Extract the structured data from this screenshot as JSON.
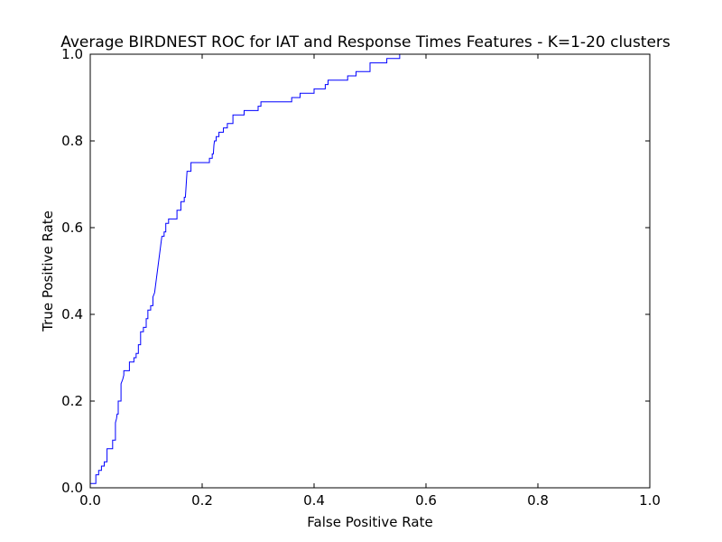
{
  "chart_data": {
    "type": "line",
    "title": "Average BIRDNEST ROC for IAT and Response Times Features - K=1-20 clusters",
    "xlabel": "False Positive Rate",
    "ylabel": "True Positive Rate",
    "xlim": [
      0,
      1
    ],
    "ylim": [
      0,
      1
    ],
    "grid": false,
    "legend": "none",
    "x_ticks": [
      "0.0",
      "0.2",
      "0.4",
      "0.6",
      "0.8",
      "1.0"
    ],
    "y_ticks": [
      "0.0",
      "0.2",
      "0.4",
      "0.6",
      "0.8",
      "1.0"
    ],
    "series": [
      {
        "color": "#0000ff",
        "points": [
          [
            0.0,
            0.0
          ],
          [
            0.0,
            0.01
          ],
          [
            0.01,
            0.01
          ],
          [
            0.01,
            0.03
          ],
          [
            0.015,
            0.03
          ],
          [
            0.015,
            0.04
          ],
          [
            0.02,
            0.04
          ],
          [
            0.02,
            0.05
          ],
          [
            0.025,
            0.05
          ],
          [
            0.025,
            0.06
          ],
          [
            0.03,
            0.06
          ],
          [
            0.03,
            0.09
          ],
          [
            0.04,
            0.09
          ],
          [
            0.04,
            0.11
          ],
          [
            0.045,
            0.11
          ],
          [
            0.045,
            0.15
          ],
          [
            0.047,
            0.16
          ],
          [
            0.048,
            0.17
          ],
          [
            0.05,
            0.17
          ],
          [
            0.05,
            0.2
          ],
          [
            0.055,
            0.2
          ],
          [
            0.055,
            0.24
          ],
          [
            0.058,
            0.25
          ],
          [
            0.06,
            0.26
          ],
          [
            0.06,
            0.27
          ],
          [
            0.07,
            0.27
          ],
          [
            0.07,
            0.29
          ],
          [
            0.078,
            0.29
          ],
          [
            0.078,
            0.3
          ],
          [
            0.082,
            0.3
          ],
          [
            0.082,
            0.31
          ],
          [
            0.086,
            0.31
          ],
          [
            0.086,
            0.33
          ],
          [
            0.09,
            0.33
          ],
          [
            0.09,
            0.36
          ],
          [
            0.095,
            0.36
          ],
          [
            0.095,
            0.37
          ],
          [
            0.1,
            0.37
          ],
          [
            0.1,
            0.39
          ],
          [
            0.103,
            0.39
          ],
          [
            0.103,
            0.41
          ],
          [
            0.108,
            0.41
          ],
          [
            0.108,
            0.42
          ],
          [
            0.112,
            0.42
          ],
          [
            0.112,
            0.44
          ],
          [
            0.115,
            0.45
          ],
          [
            0.117,
            0.47
          ],
          [
            0.118,
            0.48
          ],
          [
            0.12,
            0.5
          ],
          [
            0.122,
            0.52
          ],
          [
            0.124,
            0.54
          ],
          [
            0.126,
            0.56
          ],
          [
            0.127,
            0.57
          ],
          [
            0.128,
            0.58
          ],
          [
            0.132,
            0.58
          ],
          [
            0.132,
            0.59
          ],
          [
            0.135,
            0.59
          ],
          [
            0.135,
            0.61
          ],
          [
            0.14,
            0.61
          ],
          [
            0.14,
            0.62
          ],
          [
            0.155,
            0.62
          ],
          [
            0.155,
            0.64
          ],
          [
            0.162,
            0.64
          ],
          [
            0.162,
            0.66
          ],
          [
            0.168,
            0.66
          ],
          [
            0.168,
            0.67
          ],
          [
            0.17,
            0.67
          ],
          [
            0.171,
            0.69
          ],
          [
            0.172,
            0.71
          ],
          [
            0.173,
            0.73
          ],
          [
            0.18,
            0.73
          ],
          [
            0.18,
            0.75
          ],
          [
            0.213,
            0.75
          ],
          [
            0.213,
            0.76
          ],
          [
            0.218,
            0.76
          ],
          [
            0.218,
            0.77
          ],
          [
            0.22,
            0.77
          ],
          [
            0.221,
            0.79
          ],
          [
            0.222,
            0.8
          ],
          [
            0.225,
            0.8
          ],
          [
            0.225,
            0.81
          ],
          [
            0.23,
            0.81
          ],
          [
            0.23,
            0.82
          ],
          [
            0.238,
            0.82
          ],
          [
            0.238,
            0.83
          ],
          [
            0.245,
            0.83
          ],
          [
            0.245,
            0.84
          ],
          [
            0.255,
            0.84
          ],
          [
            0.255,
            0.86
          ],
          [
            0.275,
            0.86
          ],
          [
            0.275,
            0.87
          ],
          [
            0.3,
            0.87
          ],
          [
            0.3,
            0.88
          ],
          [
            0.305,
            0.88
          ],
          [
            0.305,
            0.89
          ],
          [
            0.36,
            0.89
          ],
          [
            0.36,
            0.9
          ],
          [
            0.375,
            0.9
          ],
          [
            0.375,
            0.91
          ],
          [
            0.4,
            0.91
          ],
          [
            0.4,
            0.92
          ],
          [
            0.42,
            0.92
          ],
          [
            0.42,
            0.93
          ],
          [
            0.425,
            0.93
          ],
          [
            0.425,
            0.94
          ],
          [
            0.46,
            0.94
          ],
          [
            0.46,
            0.95
          ],
          [
            0.475,
            0.95
          ],
          [
            0.475,
            0.96
          ],
          [
            0.5,
            0.96
          ],
          [
            0.5,
            0.98
          ],
          [
            0.53,
            0.98
          ],
          [
            0.53,
            0.99
          ],
          [
            0.553,
            0.99
          ],
          [
            0.553,
            1.0
          ],
          [
            0.56,
            1.0
          ],
          [
            1.0,
            1.0
          ]
        ]
      }
    ]
  }
}
